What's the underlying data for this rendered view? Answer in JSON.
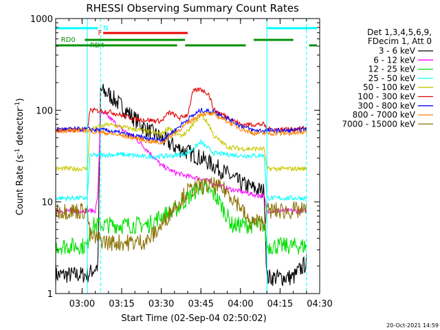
{
  "chart_data": {
    "type": "line",
    "title": "RHESSI Observing Summary Count Rates",
    "xlabel": "Start Time (02-Sep-04 02:50:02)",
    "ylabel_main": "Count Rate (s",
    "ylabel_sup1": "-1",
    "ylabel_mid": " detector",
    "ylabel_sup2": "-1",
    "ylabel_end": ")",
    "y_scale": "log",
    "xlim": [
      "02:50",
      "04:30"
    ],
    "ylim": [
      1,
      1000
    ],
    "x_ticks": [
      "03:00",
      "03:15",
      "03:30",
      "03:45",
      "04:00",
      "04:15",
      "04:30"
    ],
    "y_ticks": [
      "1",
      "10",
      "100",
      "1000"
    ],
    "footer_date": "20-Oct-2021 14:59",
    "legend": {
      "header1": "Det 1,3,4,5,6,9,",
      "header2": "FDecim 1, Att 0",
      "placement": "right"
    },
    "flags": [
      {
        "label": "N",
        "color": "#00ffff"
      },
      {
        "label": "F",
        "color": "#e80000"
      },
      {
        "label": "RD0",
        "color": "#009000"
      },
      {
        "label": "RD4",
        "color": "#009000"
      }
    ],
    "series": [
      {
        "name": "3 - 6 keV",
        "color": "#000000",
        "x": [
          "02:50",
          "03:02",
          "03:06",
          "03:07",
          "03:10",
          "03:15",
          "03:20",
          "03:25",
          "03:30",
          "03:35",
          "03:40",
          "03:45",
          "03:50",
          "03:55",
          "04:00",
          "04:05",
          "04:09",
          "04:10",
          "04:15",
          "04:20",
          "04:25"
        ],
        "y": [
          1.6,
          1.6,
          2.0,
          165,
          150,
          110,
          80,
          60,
          50,
          40,
          35,
          30,
          25,
          20,
          16,
          14,
          13,
          1.5,
          1.5,
          1.5,
          2.2
        ]
      },
      {
        "name": "6 - 12 keV",
        "color": "#ff00ff",
        "x": [
          "02:50",
          "03:02",
          "03:05",
          "03:06",
          "03:07",
          "03:10",
          "03:15",
          "03:20",
          "03:25",
          "03:30",
          "03:35",
          "03:40",
          "03:45",
          "03:50",
          "03:55",
          "04:00",
          "04:05",
          "04:09",
          "04:10",
          "04:15",
          "04:20",
          "04:25"
        ],
        "y": [
          8,
          8,
          8,
          12,
          95,
          85,
          62,
          50,
          36,
          25,
          21,
          19,
          18,
          16,
          14,
          13,
          12,
          11.5,
          8,
          8,
          8,
          8
        ]
      },
      {
        "name": "12 - 25 keV",
        "color": "#00e000",
        "x": [
          "02:50",
          "03:02",
          "03:03",
          "03:07",
          "03:20",
          "03:25",
          "03:30",
          "03:35",
          "03:40",
          "03:45",
          "03:50",
          "03:52",
          "03:55",
          "03:57",
          "04:00",
          "04:05",
          "04:09",
          "04:10",
          "04:20",
          "04:25"
        ],
        "y": [
          3.3,
          3.3,
          5.5,
          5.6,
          5.6,
          5.6,
          7,
          8,
          11,
          15,
          12,
          10,
          7,
          5.5,
          5.6,
          5.6,
          5.6,
          3.3,
          3.3,
          3.3
        ]
      },
      {
        "name": "25 - 50 keV",
        "color": "#00ffff",
        "x": [
          "02:50",
          "03:02",
          "03:03",
          "03:15",
          "03:25",
          "03:35",
          "03:40",
          "03:43",
          "03:45",
          "03:47",
          "03:50",
          "03:55",
          "04:00",
          "04:03",
          "04:09",
          "04:10",
          "04:20",
          "04:25"
        ],
        "y": [
          11,
          11,
          32,
          33,
          31,
          32,
          34,
          40,
          45,
          40,
          34,
          33,
          32,
          32,
          32,
          11,
          11,
          11
        ]
      },
      {
        "name": "50 - 100 keV",
        "color": "#c8c800",
        "x": [
          "02:50",
          "03:02",
          "03:03",
          "03:10",
          "03:20",
          "03:30",
          "03:33",
          "03:37",
          "03:40",
          "03:42",
          "03:45",
          "03:48",
          "03:50",
          "03:55",
          "04:00",
          "04:03",
          "04:09",
          "04:10",
          "04:20",
          "04:25"
        ],
        "y": [
          23,
          23,
          62,
          70,
          62,
          55,
          65,
          52,
          58,
          70,
          90,
          70,
          52,
          40,
          38,
          38,
          38,
          23,
          23,
          23
        ]
      },
      {
        "name": "100 - 300 keV",
        "color": "#e00000",
        "x": [
          "02:50",
          "03:02",
          "03:03",
          "03:10",
          "03:20",
          "03:30",
          "03:33",
          "03:37",
          "03:40",
          "03:42",
          "03:45",
          "03:48",
          "03:50",
          "03:55",
          "04:00",
          "04:03",
          "04:09",
          "04:10",
          "04:20",
          "04:25"
        ],
        "y": [
          61,
          61,
          100,
          97,
          80,
          76,
          95,
          82,
          90,
          160,
          170,
          150,
          100,
          85,
          70,
          70,
          70,
          62,
          62,
          64
        ]
      },
      {
        "name": "300 - 800 keV",
        "color": "#0000ff",
        "x": [
          "02:50",
          "03:02",
          "03:10",
          "03:20",
          "03:25",
          "03:30",
          "03:35",
          "03:40",
          "03:45",
          "03:50",
          "03:55",
          "04:00",
          "04:05",
          "04:10",
          "04:20",
          "04:25"
        ],
        "y": [
          62,
          62,
          60,
          52,
          49,
          47,
          60,
          80,
          100,
          96,
          82,
          68,
          60,
          60,
          60,
          62
        ]
      },
      {
        "name": "800 - 7000 keV",
        "color": "#ff8000",
        "x": [
          "02:50",
          "03:02",
          "03:10",
          "03:20",
          "03:25",
          "03:30",
          "03:35",
          "03:40",
          "03:45",
          "03:50",
          "03:55",
          "04:00",
          "04:05",
          "04:10",
          "04:20",
          "04:25"
        ],
        "y": [
          60,
          60,
          56,
          50,
          46,
          44,
          56,
          72,
          92,
          90,
          76,
          63,
          56,
          56,
          56,
          58
        ]
      },
      {
        "name": "7000 - 15000 keV",
        "color": "#8b7000",
        "x": [
          "02:50",
          "03:02",
          "03:03",
          "03:10",
          "03:20",
          "03:25",
          "03:30",
          "03:35",
          "03:40",
          "03:45",
          "03:50",
          "03:55",
          "04:00",
          "04:03",
          "04:09",
          "04:10",
          "04:20",
          "04:25"
        ],
        "y": [
          8,
          8,
          4.2,
          3.6,
          3.6,
          3.8,
          5.5,
          9,
          13,
          15,
          15,
          13,
          9,
          6,
          6,
          8,
          8,
          8
        ]
      }
    ]
  }
}
